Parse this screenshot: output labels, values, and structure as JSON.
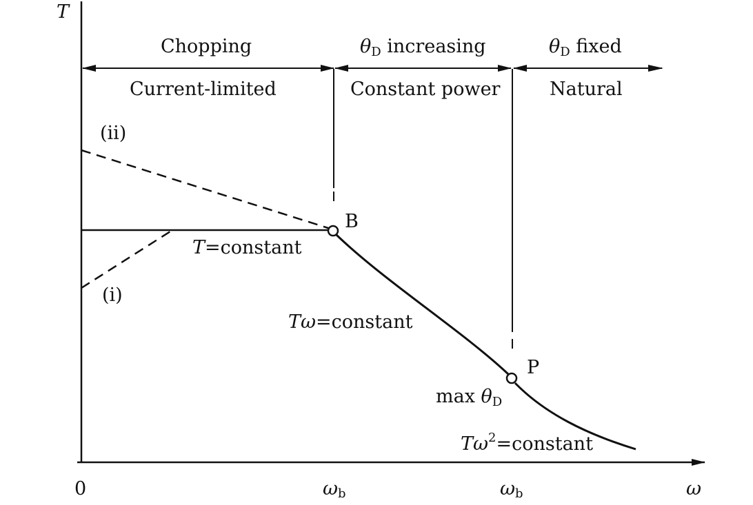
{
  "axes": {
    "y_label": "T",
    "x_label": "ω",
    "origin_label": "0",
    "tick_1": {
      "main": "ω",
      "sub": "b"
    },
    "tick_2": {
      "main": "ω",
      "sub": "b"
    }
  },
  "regions": {
    "top": {
      "chopping": "Chopping",
      "theta_increasing": {
        "symbol": "θ",
        "sub": "D",
        "text": " increasing"
      },
      "theta_fixed": {
        "symbol": "θ",
        "sub": "D",
        "text": " fixed"
      }
    },
    "bottom": {
      "current_limited": "Current-limited",
      "constant_power": "Constant power",
      "natural": "Natural"
    }
  },
  "curve_labels": {
    "ii": "(ii)",
    "i": "(i)",
    "point_b": "B",
    "point_p": "P",
    "t_constant": {
      "var": "T",
      "text": "=constant"
    },
    "tw_constant": {
      "var": "Tω",
      "text": "=constant"
    },
    "tw2_constant": {
      "var": "Tω",
      "sup": "2",
      "text": "=constant"
    },
    "max_theta": {
      "prefix": "max ",
      "symbol": "θ",
      "sub": "D"
    }
  }
}
